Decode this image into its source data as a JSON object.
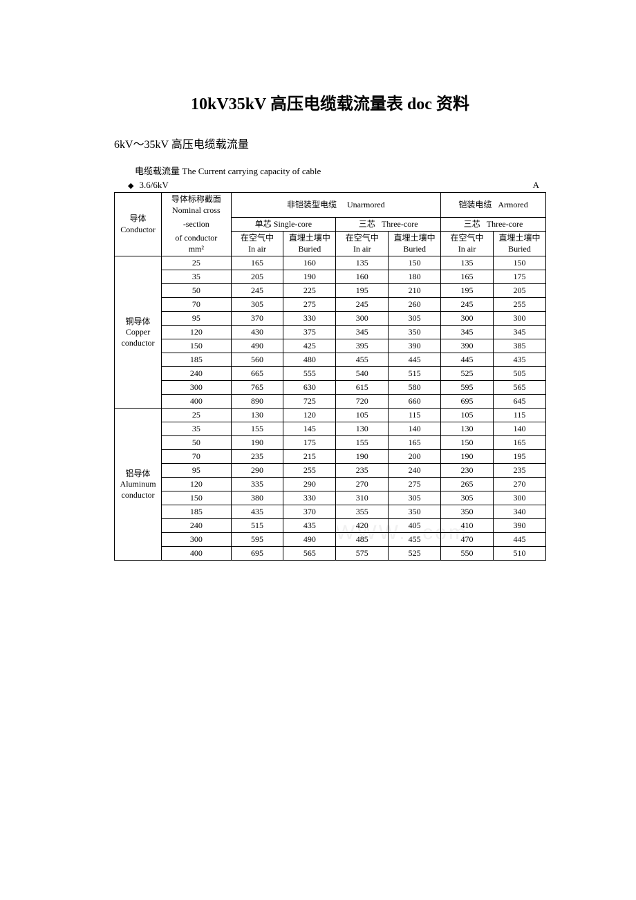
{
  "title": "10kV35kV 高压电缆载流量表 doc 资料",
  "subtitle": "6kV～35kV 高压电缆载流量",
  "table_caption": "电缆载流量 The Current carrying capacity of cable",
  "voltage_label": "3.6/6kV",
  "unit_label": "A",
  "headers": {
    "conductor_cn": "导体",
    "conductor_en": "Conductor",
    "section_cn1": "导体标称截面",
    "section_en1": "Nominal cross",
    "section_en2": "-section",
    "section_en3": "of conductor",
    "section_unit": "mm²",
    "unarmored_cn": "非铠装型电缆",
    "unarmored_en": "Unarmored",
    "armored_cn": "铠装电缆",
    "armored_en": "Armored",
    "single_core_cn": "单芯",
    "single_core_en": "Single-core",
    "three_core_cn": "三芯",
    "three_core_en": "Three-core",
    "in_air_cn": "在空气中",
    "in_air_en": "In air",
    "buried_cn": "直埋土壤中",
    "buried_en": "Buried"
  },
  "conductors": {
    "copper_cn": "铜导体",
    "copper_en1": "Copper",
    "copper_en2": "conductor",
    "aluminum_cn": "铝导体",
    "aluminum_en1": "Aluminum",
    "aluminum_en2": "conductor"
  },
  "copper_rows": [
    {
      "section": "25",
      "v": [
        "165",
        "160",
        "135",
        "150",
        "135",
        "150"
      ]
    },
    {
      "section": "35",
      "v": [
        "205",
        "190",
        "160",
        "180",
        "165",
        "175"
      ]
    },
    {
      "section": "50",
      "v": [
        "245",
        "225",
        "195",
        "210",
        "195",
        "205"
      ]
    },
    {
      "section": "70",
      "v": [
        "305",
        "275",
        "245",
        "260",
        "245",
        "255"
      ]
    },
    {
      "section": "95",
      "v": [
        "370",
        "330",
        "300",
        "305",
        "300",
        "300"
      ]
    },
    {
      "section": "120",
      "v": [
        "430",
        "375",
        "345",
        "350",
        "345",
        "345"
      ]
    },
    {
      "section": "150",
      "v": [
        "490",
        "425",
        "395",
        "390",
        "390",
        "385"
      ]
    },
    {
      "section": "185",
      "v": [
        "560",
        "480",
        "455",
        "445",
        "445",
        "435"
      ]
    },
    {
      "section": "240",
      "v": [
        "665",
        "555",
        "540",
        "515",
        "525",
        "505"
      ]
    },
    {
      "section": "300",
      "v": [
        "765",
        "630",
        "615",
        "580",
        "595",
        "565"
      ]
    },
    {
      "section": "400",
      "v": [
        "890",
        "725",
        "720",
        "660",
        "695",
        "645"
      ]
    }
  ],
  "aluminum_rows": [
    {
      "section": "25",
      "v": [
        "130",
        "120",
        "105",
        "115",
        "105",
        "115"
      ]
    },
    {
      "section": "35",
      "v": [
        "155",
        "145",
        "130",
        "140",
        "130",
        "140"
      ]
    },
    {
      "section": "50",
      "v": [
        "190",
        "175",
        "155",
        "165",
        "150",
        "165"
      ]
    },
    {
      "section": "70",
      "v": [
        "235",
        "215",
        "190",
        "200",
        "190",
        "195"
      ]
    },
    {
      "section": "95",
      "v": [
        "290",
        "255",
        "235",
        "240",
        "230",
        "235"
      ]
    },
    {
      "section": "120",
      "v": [
        "335",
        "290",
        "270",
        "275",
        "265",
        "270"
      ]
    },
    {
      "section": "150",
      "v": [
        "380",
        "330",
        "310",
        "305",
        "305",
        "300"
      ]
    },
    {
      "section": "185",
      "v": [
        "435",
        "370",
        "355",
        "350",
        "350",
        "340"
      ]
    },
    {
      "section": "240",
      "v": [
        "515",
        "435",
        "420",
        "405",
        "410",
        "390"
      ]
    },
    {
      "section": "300",
      "v": [
        "595",
        "490",
        "485",
        "455",
        "470",
        "445"
      ]
    },
    {
      "section": "400",
      "v": [
        "695",
        "565",
        "575",
        "525",
        "550",
        "510"
      ]
    }
  ],
  "watermark": "WWW.      .com",
  "styling": {
    "background_color": "#ffffff",
    "text_color": "#000000",
    "border_color": "#000000",
    "title_fontsize": 24,
    "subtitle_fontsize": 16,
    "table_fontsize": 12,
    "caption_fontsize": 13
  }
}
